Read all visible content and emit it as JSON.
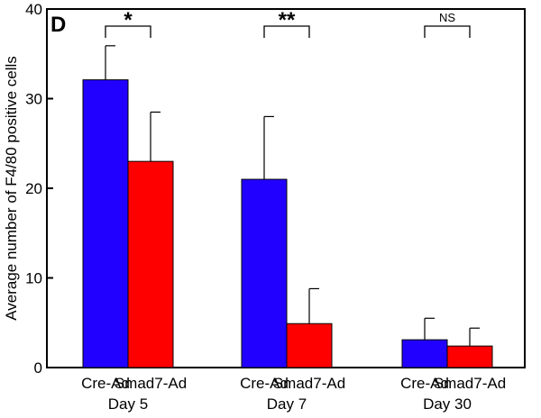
{
  "chart_data": {
    "type": "bar",
    "panel_label": "D",
    "title": "",
    "ylabel": "Average number of F4/80 positive cells",
    "xlabel": "",
    "ylim": [
      0,
      40
    ],
    "yticks": [
      0,
      10,
      20,
      30,
      40
    ],
    "grid": false,
    "groups": [
      {
        "label": "Day 5",
        "bars": [
          {
            "name": "Cre-Ad",
            "value": 32.1,
            "error": 3.8
          },
          {
            "name": "Smad7-Ad",
            "value": 23.0,
            "error": 5.5
          }
        ],
        "significance": "*"
      },
      {
        "label": "Day 7",
        "bars": [
          {
            "name": "Cre-Ad",
            "value": 21.0,
            "error": 7.0
          },
          {
            "name": "Smad7-Ad",
            "value": 4.9,
            "error": 3.9
          }
        ],
        "significance": "**"
      },
      {
        "label": "Day 30",
        "bars": [
          {
            "name": "Cre-Ad",
            "value": 3.1,
            "error": 2.4
          },
          {
            "name": "Smad7-Ad",
            "value": 2.4,
            "error": 2.0
          }
        ],
        "significance": "NS"
      }
    ],
    "colors": {
      "Cre-Ad": "#2200ff",
      "Smad7-Ad": "#ff0000"
    }
  }
}
